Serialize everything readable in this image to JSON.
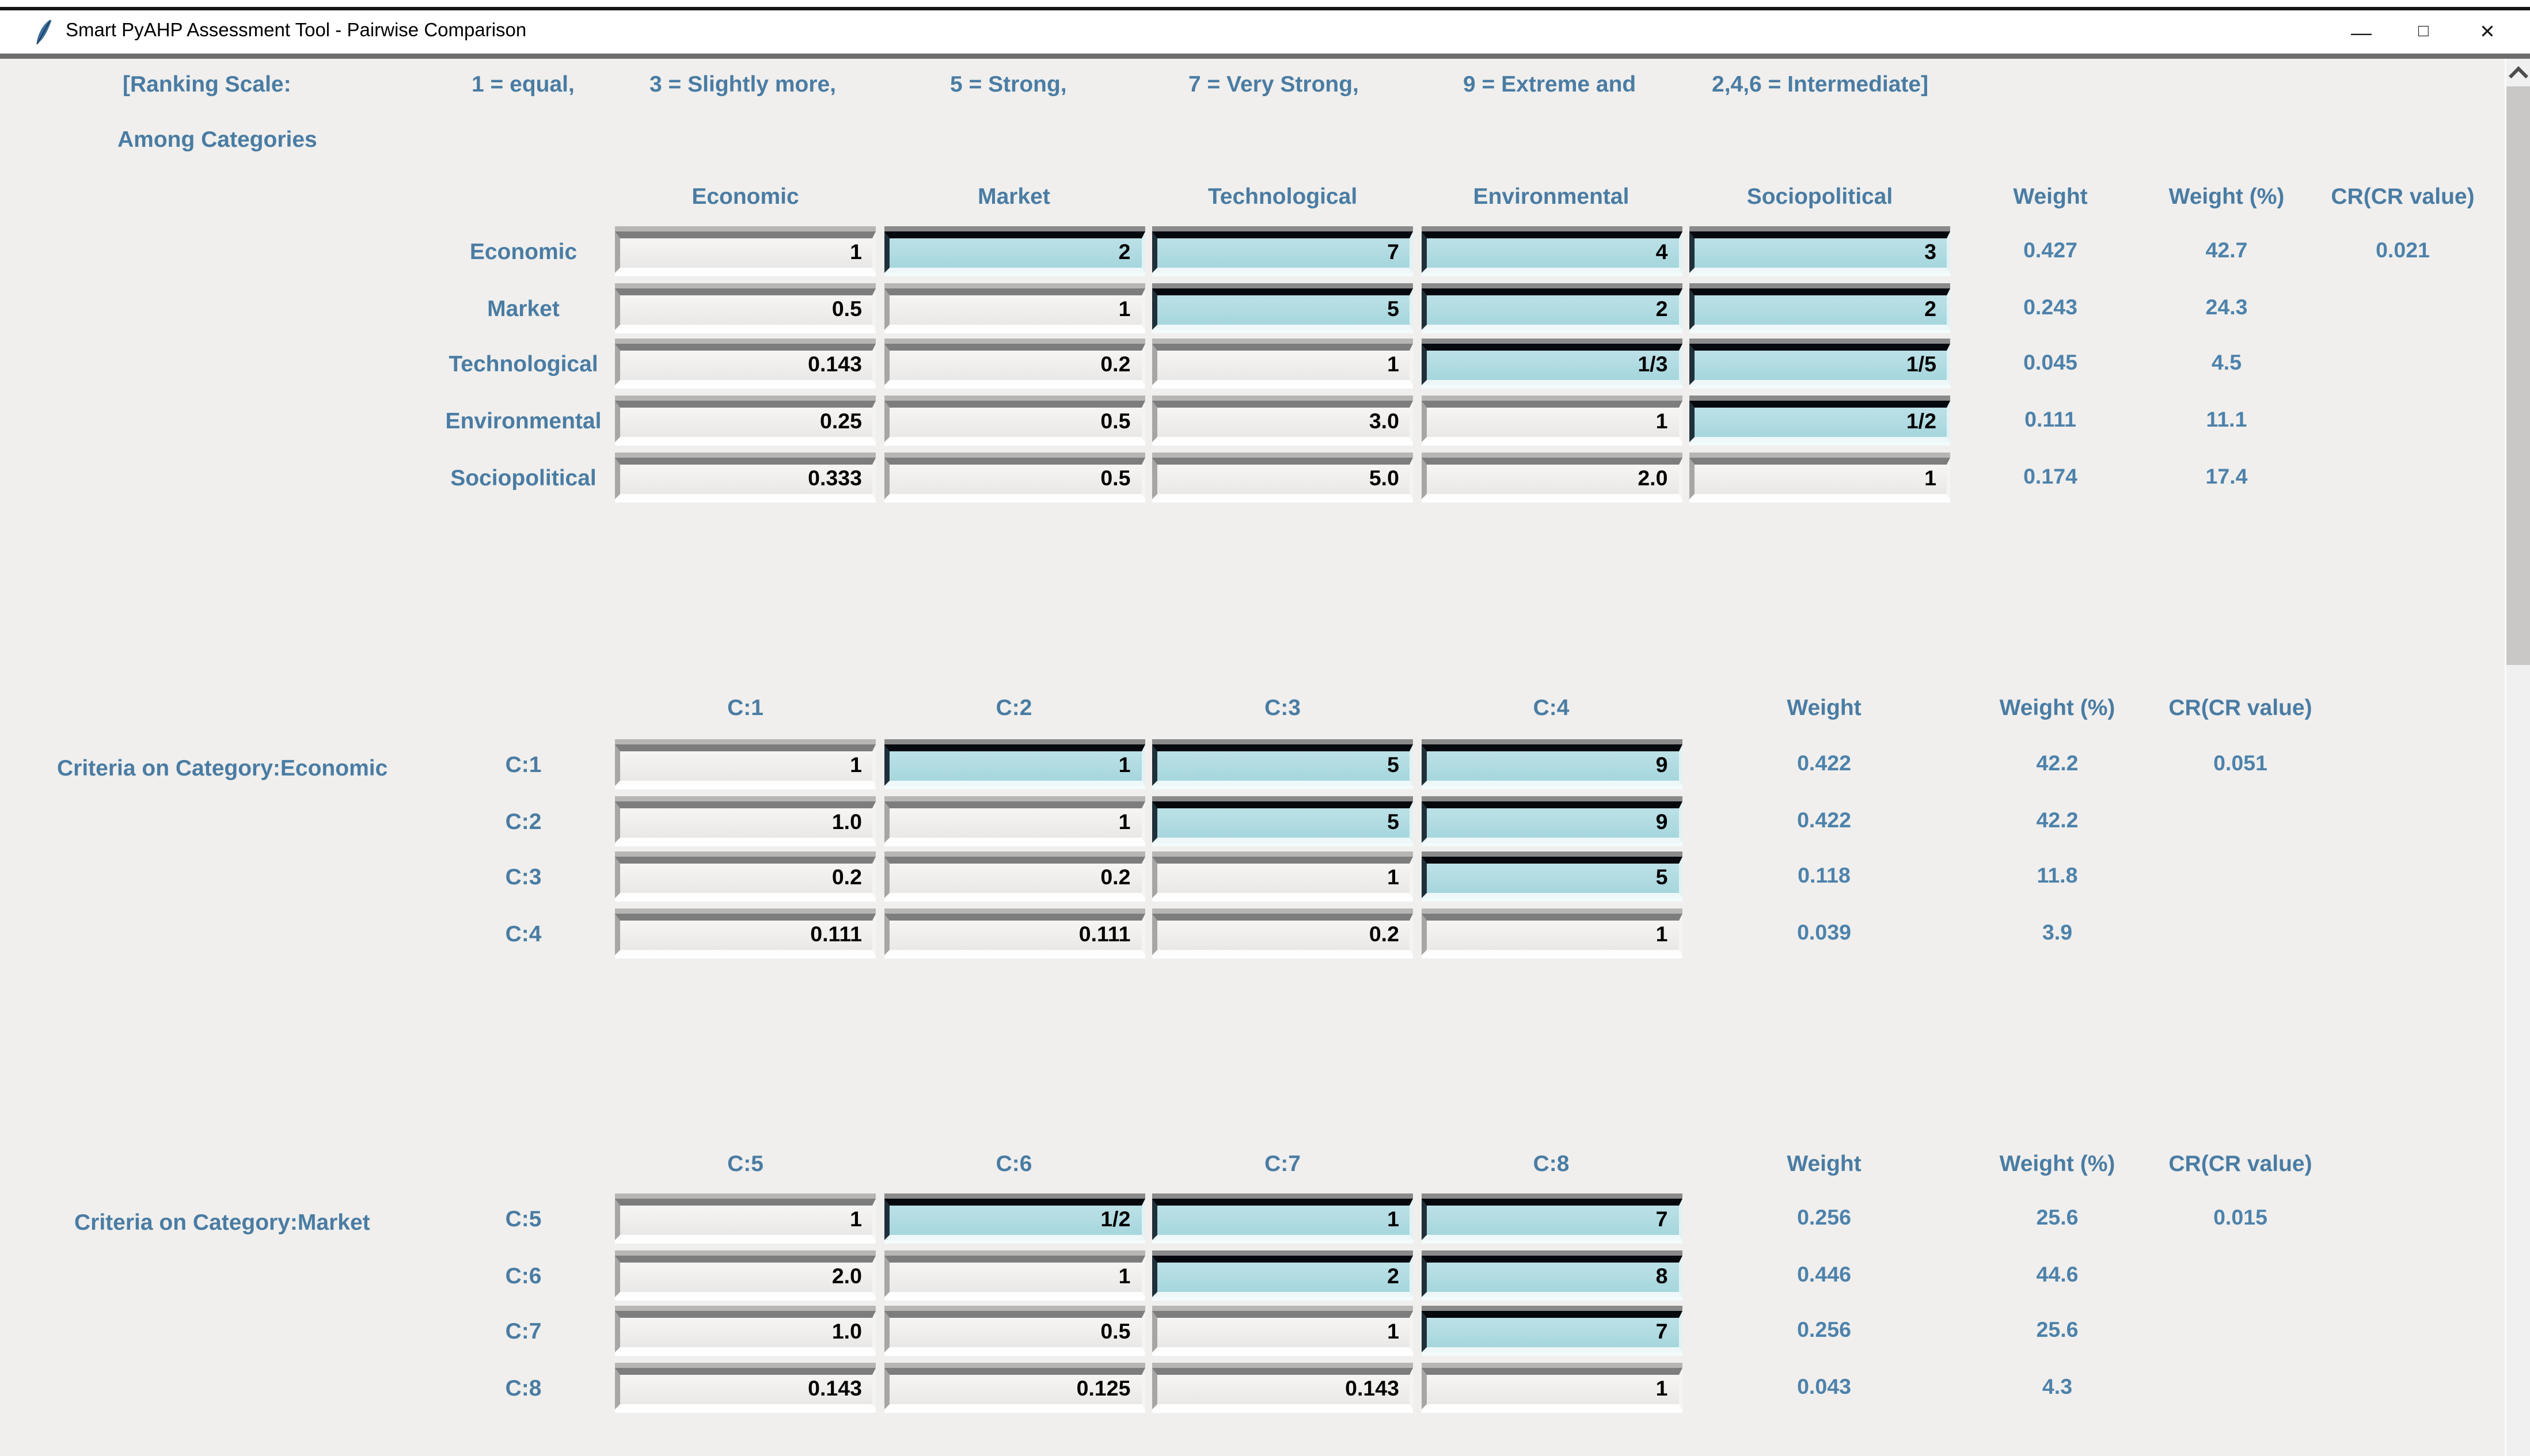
{
  "window": {
    "title": "Smart PyAHP Assessment Tool - Pairwise Comparison",
    "controls": {
      "minimize": "—",
      "maximize": "□",
      "close": "✕"
    }
  },
  "ranking_scale": {
    "items": [
      "[Ranking Scale:",
      "1 = equal,",
      "3 = Slightly more,",
      "5 = Strong,",
      "7 = Very Strong,",
      "9 = Extreme and",
      "2,4,6 = Intermediate]"
    ]
  },
  "matrices": [
    {
      "section_label": "Among Categories",
      "columns": [
        "Economic",
        "Market",
        "Technological",
        "Environmental",
        "Sociopolitical"
      ],
      "weight_headers": [
        "Weight",
        "Weight (%)",
        "CR(CR value)"
      ],
      "rows": [
        {
          "label": "Economic",
          "cells": [
            "1",
            "2",
            "7",
            "4",
            "3"
          ],
          "weight": "0.427",
          "weight_pct": "42.7",
          "cr": "0.021"
        },
        {
          "label": "Market",
          "cells": [
            "0.5",
            "1",
            "5",
            "2",
            "2"
          ],
          "weight": "0.243",
          "weight_pct": "24.3",
          "cr": ""
        },
        {
          "label": "Technological",
          "cells": [
            "0.143",
            "0.2",
            "1",
            "1/3",
            "1/5"
          ],
          "weight": "0.045",
          "weight_pct": "4.5",
          "cr": ""
        },
        {
          "label": "Environmental",
          "cells": [
            "0.25",
            "0.5",
            "3.0",
            "1",
            "1/2"
          ],
          "weight": "0.111",
          "weight_pct": "11.1",
          "cr": ""
        },
        {
          "label": "Sociopolitical",
          "cells": [
            "0.333",
            "0.5",
            "5.0",
            "2.0",
            "1"
          ],
          "weight": "0.174",
          "weight_pct": "17.4",
          "cr": ""
        }
      ]
    },
    {
      "section_label": "Criteria on Category:Economic",
      "columns": [
        "C:1",
        "C:2",
        "C:3",
        "C:4"
      ],
      "weight_headers": [
        "Weight",
        "Weight (%)",
        "CR(CR value)"
      ],
      "rows": [
        {
          "label": "C:1",
          "cells": [
            "1",
            "1",
            "5",
            "9"
          ],
          "weight": "0.422",
          "weight_pct": "42.2",
          "cr": "0.051"
        },
        {
          "label": "C:2",
          "cells": [
            "1.0",
            "1",
            "5",
            "9"
          ],
          "weight": "0.422",
          "weight_pct": "42.2",
          "cr": ""
        },
        {
          "label": "C:3",
          "cells": [
            "0.2",
            "0.2",
            "1",
            "5"
          ],
          "weight": "0.118",
          "weight_pct": "11.8",
          "cr": ""
        },
        {
          "label": "C:4",
          "cells": [
            "0.111",
            "0.111",
            "0.2",
            "1"
          ],
          "weight": "0.039",
          "weight_pct": "3.9",
          "cr": ""
        }
      ]
    },
    {
      "section_label": "Criteria on Category:Market",
      "columns": [
        "C:5",
        "C:6",
        "C:7",
        "C:8"
      ],
      "weight_headers": [
        "Weight",
        "Weight (%)",
        "CR(CR value)"
      ],
      "rows": [
        {
          "label": "C:5",
          "cells": [
            "1",
            "1/2",
            "1",
            "7"
          ],
          "weight": "0.256",
          "weight_pct": "25.6",
          "cr": "0.015"
        },
        {
          "label": "C:6",
          "cells": [
            "2.0",
            "1",
            "2",
            "8"
          ],
          "weight": "0.446",
          "weight_pct": "44.6",
          "cr": ""
        },
        {
          "label": "C:7",
          "cells": [
            "1.0",
            "0.5",
            "1",
            "7"
          ],
          "weight": "0.256",
          "weight_pct": "25.6",
          "cr": ""
        },
        {
          "label": "C:8",
          "cells": [
            "0.143",
            "0.125",
            "0.143",
            "1"
          ],
          "weight": "0.043",
          "weight_pct": "4.3",
          "cr": ""
        }
      ]
    }
  ],
  "colors": {
    "accent_text": "#4a7ca3",
    "cell_highlight": "#b0dce2",
    "content_bg": "#f0efed",
    "titlebar_bg": "#ffffff"
  }
}
